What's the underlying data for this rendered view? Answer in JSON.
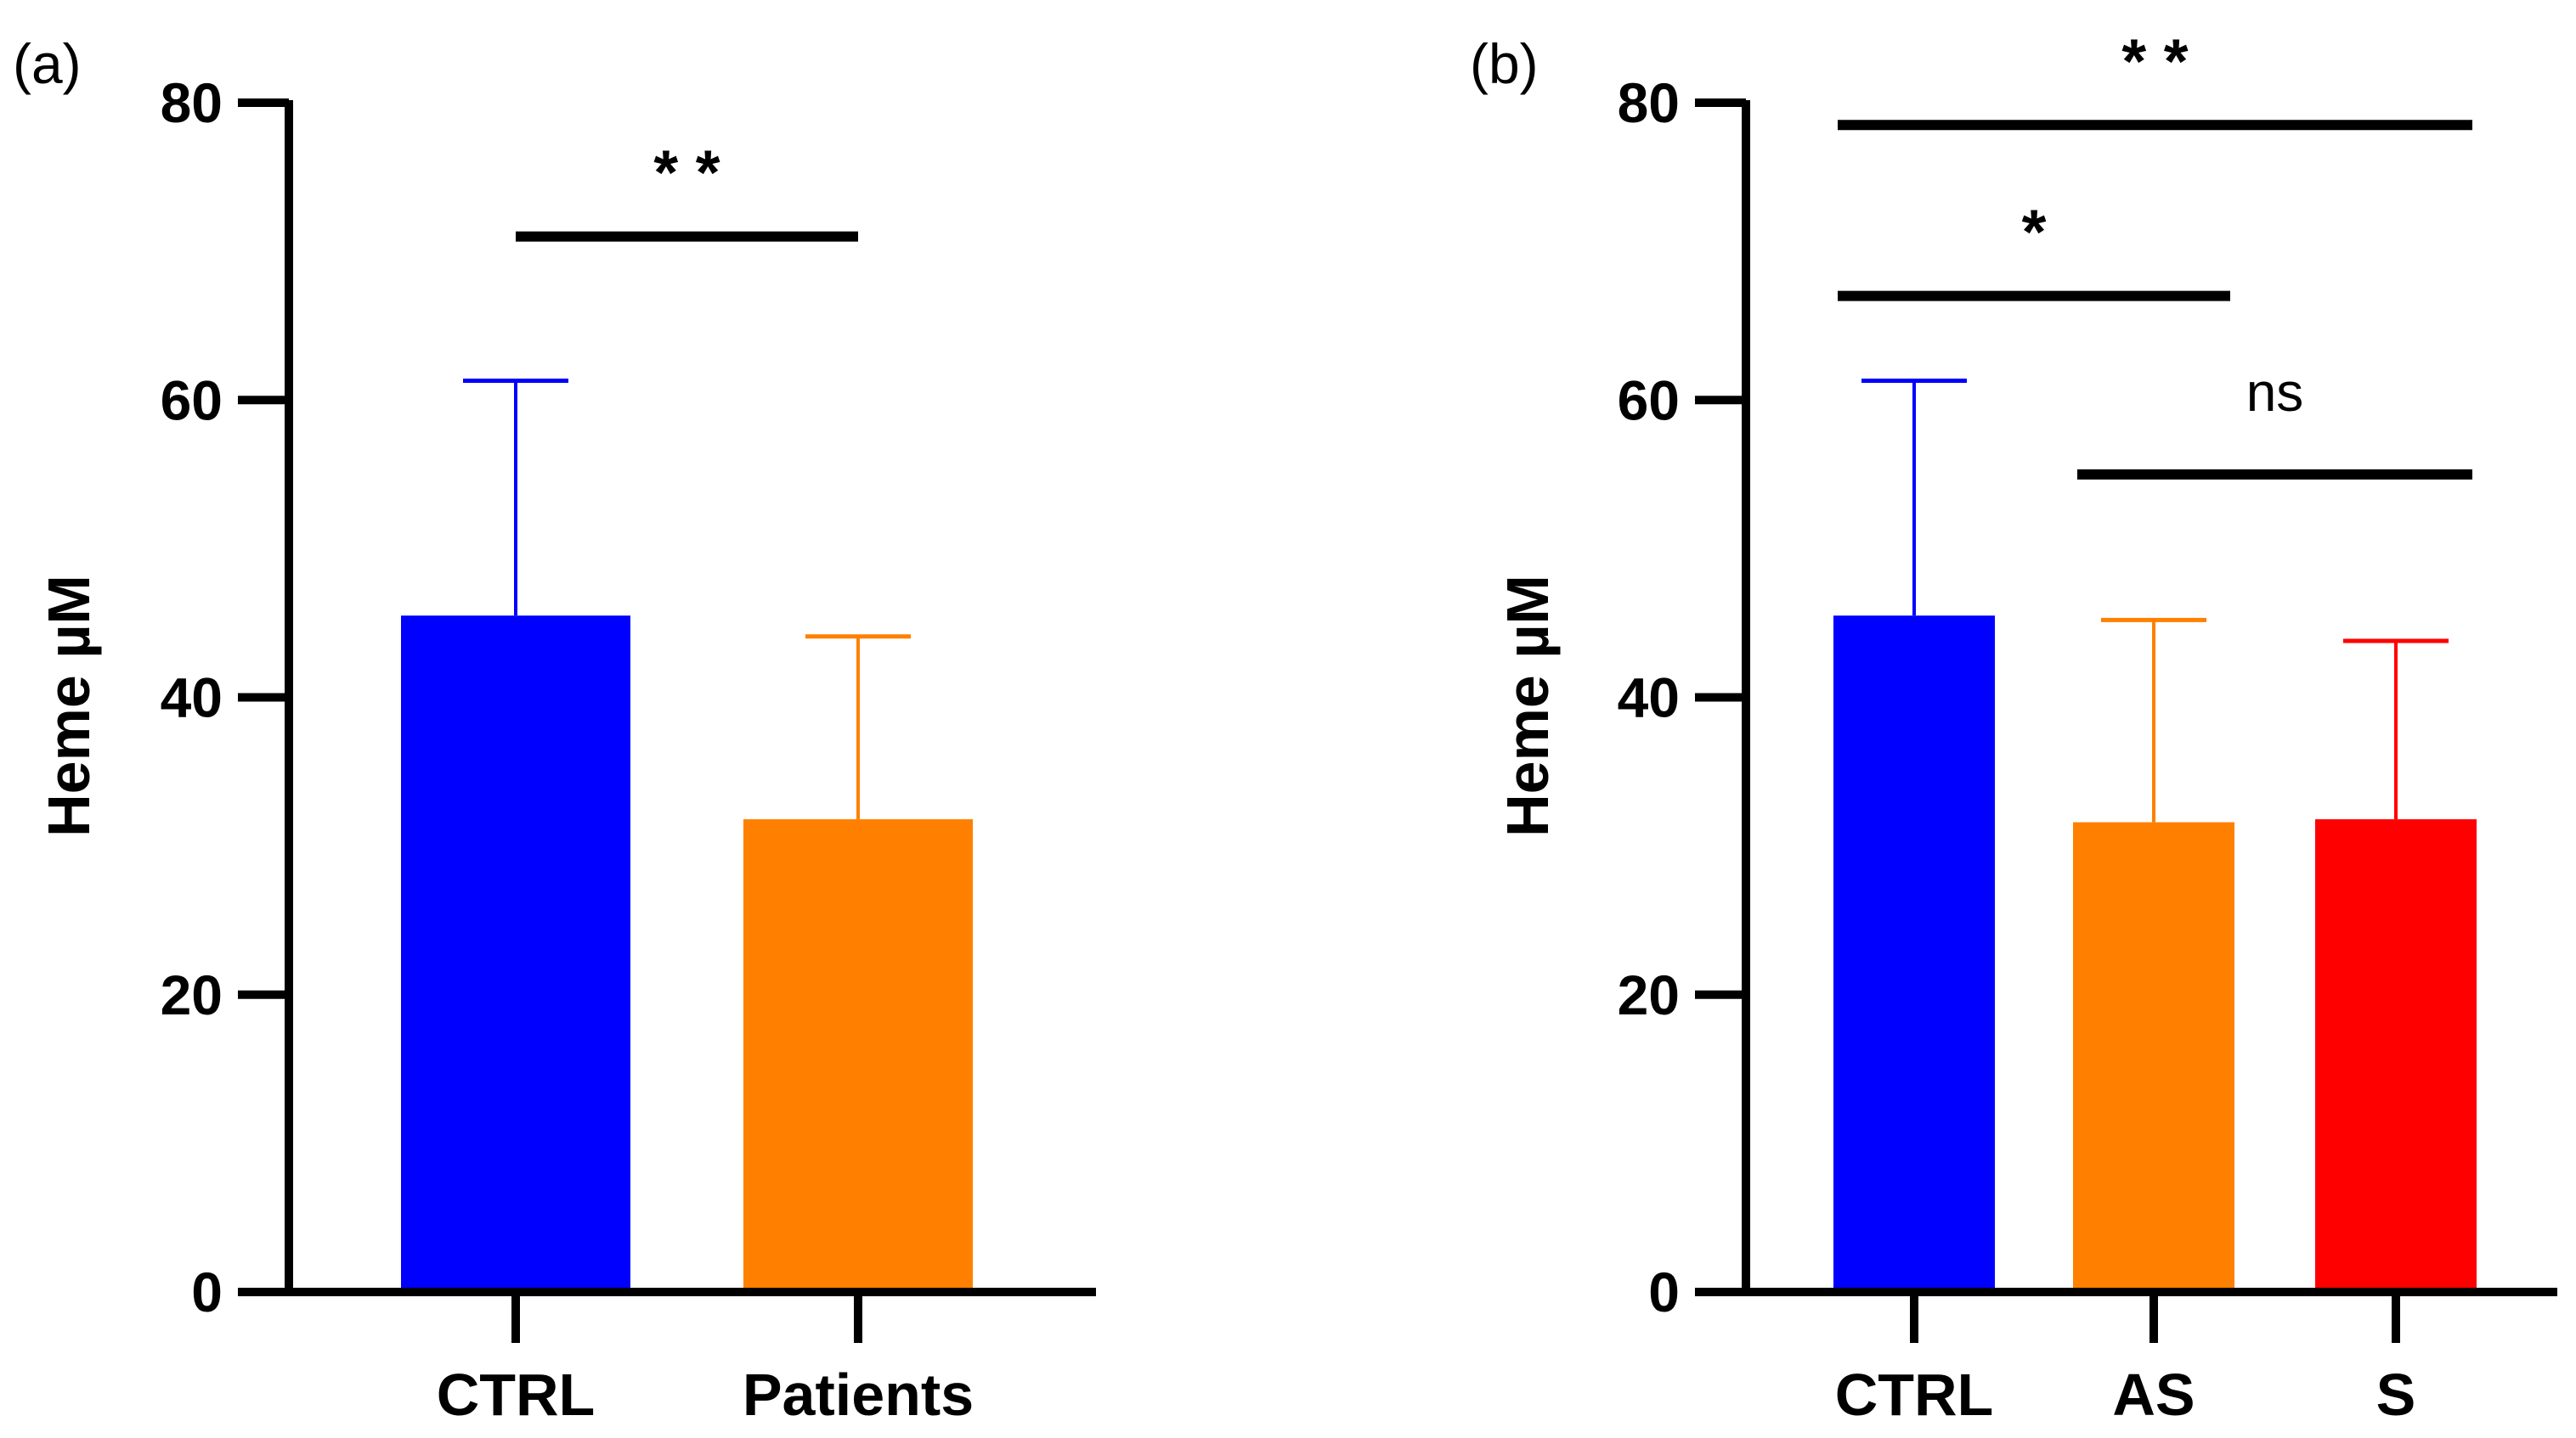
{
  "chart_data": [
    {
      "type": "bar",
      "panel_label": "(a)",
      "title": "",
      "xlabel": "",
      "ylabel": "Heme µM",
      "ylim": [
        0,
        80
      ],
      "yticks": [
        "0",
        "20",
        "40",
        "60",
        "80"
      ],
      "categories": [
        "CTRL",
        "Patients"
      ],
      "values": [
        45.5,
        31.8
      ],
      "errors": [
        15.8,
        12.3
      ],
      "colors": [
        "#0000ff",
        "#ff8000"
      ],
      "grid": false,
      "significance": [
        {
          "from": 0,
          "to": 1,
          "label": "* *",
          "y": 71
        }
      ]
    },
    {
      "type": "bar",
      "panel_label": "(b)",
      "title": "",
      "xlabel": "",
      "ylabel": "Heme µM",
      "ylim": [
        0,
        80
      ],
      "yticks": [
        "0",
        "20",
        "40",
        "60",
        "80"
      ],
      "categories": [
        "CTRL",
        "AS",
        "S"
      ],
      "values": [
        45.5,
        31.6,
        31.8
      ],
      "errors": [
        15.8,
        13.6,
        12.0
      ],
      "colors": [
        "#0000ff",
        "#ff8000",
        "#ff0000"
      ],
      "grid": false,
      "significance": [
        {
          "from": 0,
          "to": 2,
          "label": "* *",
          "y": 78.5
        },
        {
          "from": 0,
          "to": 1,
          "label": "*",
          "y": 67
        },
        {
          "from": 1,
          "to": 2,
          "label": "ns",
          "y": 55
        }
      ]
    }
  ]
}
